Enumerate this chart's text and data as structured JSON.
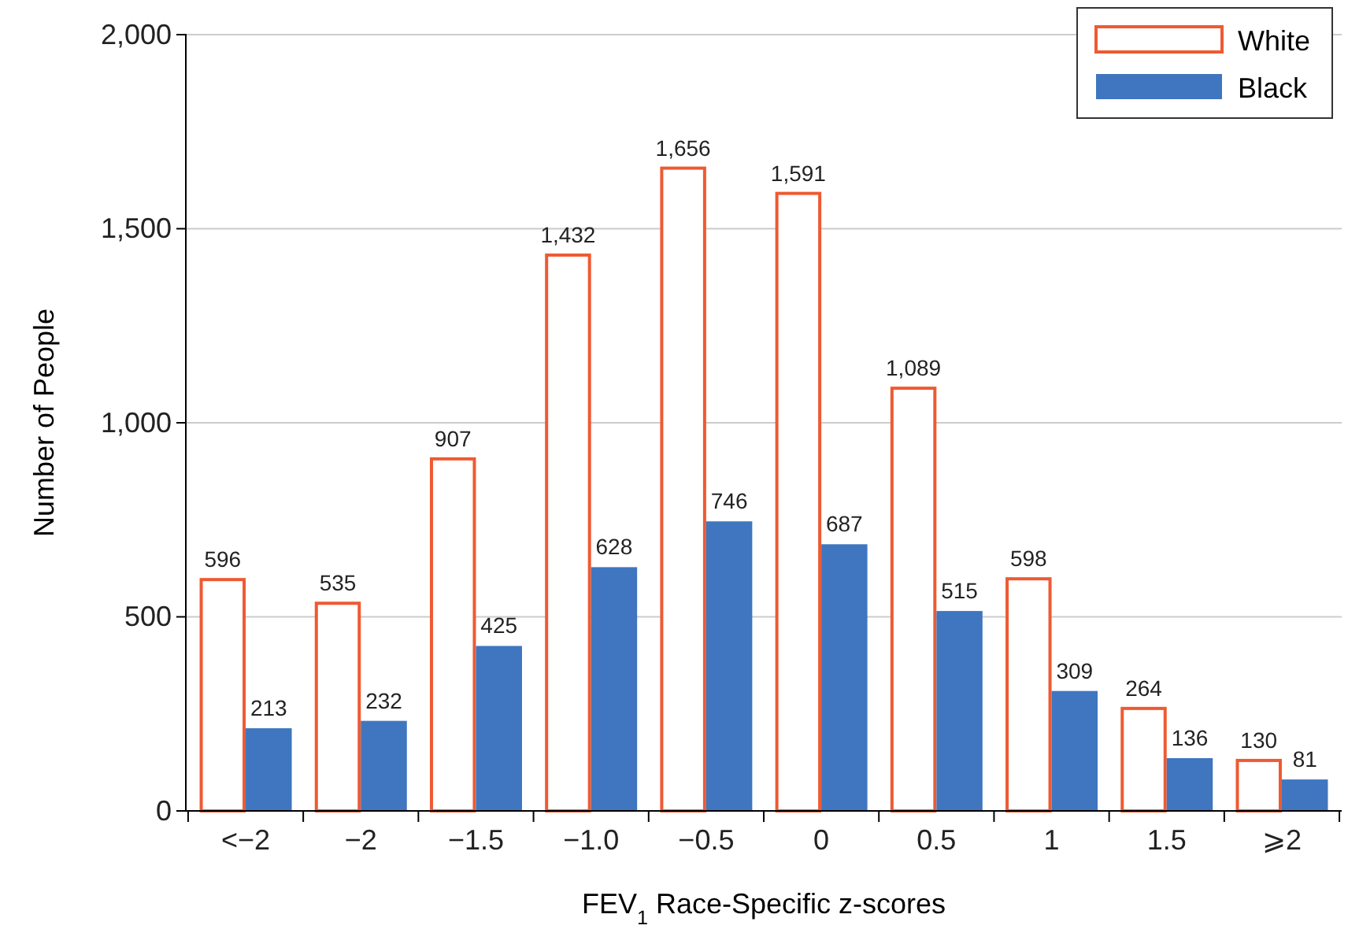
{
  "chart_data": {
    "type": "bar",
    "xlabel": "FEV$_{1}$ Race-Specific z-scores",
    "ylabel": "Number of People",
    "categories": [
      "<−2",
      "−2",
      "−1.5",
      "−1.0",
      "−0.5",
      "0",
      "0.5",
      "1",
      "1.5",
      "⩾2"
    ],
    "series": [
      {
        "name": "White",
        "color": "#ee5a32",
        "values": [
          596,
          535,
          907,
          1432,
          1656,
          1591,
          1089,
          598,
          264,
          130
        ],
        "value_labels": [
          "596",
          "535",
          "907",
          "1,432",
          "1,656",
          "1,591",
          "1,089",
          "598",
          "264",
          "130"
        ]
      },
      {
        "name": "Black",
        "color": "#3f76bf",
        "values": [
          213,
          232,
          425,
          628,
          746,
          687,
          515,
          309,
          136,
          81
        ],
        "value_labels": [
          "213",
          "232",
          "425",
          "628",
          "746",
          "687",
          "515",
          "309",
          "136",
          "81"
        ]
      }
    ],
    "ylim": [
      0,
      2000
    ],
    "yticks": [
      0,
      {
        "value": 500,
        "label": "500"
      },
      {
        "value": 1000,
        "label": "1,000"
      },
      {
        "value": 1500,
        "label": "1,500"
      },
      {
        "value": 2000,
        "label": "2,000"
      }
    ],
    "grid": "y",
    "legend": "top right"
  }
}
